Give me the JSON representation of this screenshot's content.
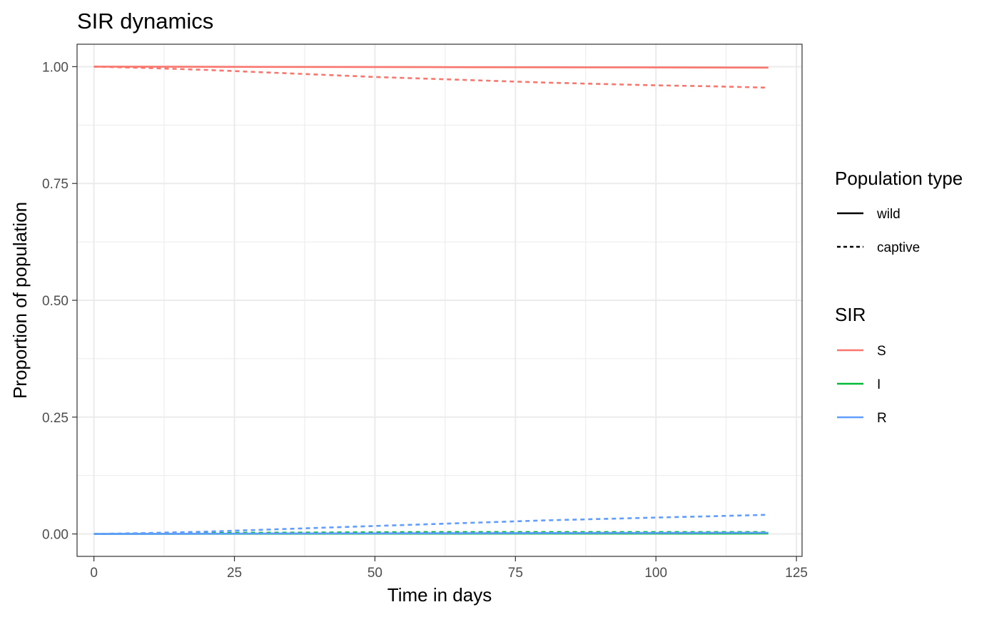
{
  "chart_data": {
    "type": "line",
    "title": "SIR dynamics",
    "xlabel": "Time in days",
    "ylabel": "Proportion of population",
    "xlim": [
      -3,
      126
    ],
    "ylim": [
      -0.048,
      1.048
    ],
    "x_ticks": [
      0,
      25,
      50,
      75,
      100,
      125
    ],
    "x_tick_labels": [
      "0",
      "25",
      "50",
      "75",
      "100",
      "125"
    ],
    "y_ticks": [
      0,
      0.25,
      0.5,
      0.75,
      1.0
    ],
    "y_tick_labels": [
      "0.00",
      "0.25",
      "0.50",
      "0.75",
      "1.00"
    ],
    "grid": true,
    "theme": "bw",
    "legend_position": "right",
    "colors": {
      "S": "#F8766D",
      "I": "#00BA38",
      "R": "#619CFF"
    },
    "legend_linetype": {
      "title": "Population type",
      "entries": [
        {
          "label": "wild",
          "linetype": "solid"
        },
        {
          "label": "captive",
          "linetype": "dashed"
        }
      ]
    },
    "legend_color": {
      "title": "SIR",
      "entries": [
        {
          "label": "S",
          "color": "#F8766D"
        },
        {
          "label": "I",
          "color": "#00BA38"
        },
        {
          "label": "R",
          "color": "#619CFF"
        }
      ]
    },
    "series": [
      {
        "name": "S",
        "population": "wild",
        "linetype": "solid",
        "color": "#F8766D",
        "x": [
          0,
          30,
          60,
          90,
          120
        ],
        "y": [
          1.0,
          0.9995,
          0.999,
          0.9985,
          0.998
        ]
      },
      {
        "name": "S",
        "population": "captive",
        "linetype": "dashed",
        "color": "#F8766D",
        "x": [
          0,
          10,
          20,
          30,
          40,
          50,
          60,
          70,
          80,
          90,
          100,
          110,
          120
        ],
        "y": [
          1.0,
          0.997,
          0.993,
          0.988,
          0.983,
          0.978,
          0.974,
          0.97,
          0.966,
          0.963,
          0.96,
          0.958,
          0.955
        ]
      },
      {
        "name": "I",
        "population": "wild",
        "linetype": "solid",
        "color": "#00BA38",
        "x": [
          0,
          30,
          60,
          90,
          120
        ],
        "y": [
          0.0,
          0.0004,
          0.0006,
          0.0007,
          0.0008
        ]
      },
      {
        "name": "I",
        "population": "captive",
        "linetype": "dashed",
        "color": "#00BA38",
        "x": [
          0,
          20,
          40,
          60,
          80,
          100,
          120
        ],
        "y": [
          0.0,
          0.002,
          0.003,
          0.004,
          0.004,
          0.004,
          0.004
        ]
      },
      {
        "name": "R",
        "population": "wild",
        "linetype": "solid",
        "color": "#619CFF",
        "x": [
          0,
          30,
          60,
          90,
          120
        ],
        "y": [
          0.0,
          0.0008,
          0.0015,
          0.002,
          0.0025
        ]
      },
      {
        "name": "R",
        "population": "captive",
        "linetype": "dashed",
        "color": "#619CFF",
        "x": [
          0,
          10,
          20,
          30,
          40,
          50,
          60,
          70,
          80,
          90,
          100,
          110,
          120
        ],
        "y": [
          0.0,
          0.002,
          0.005,
          0.009,
          0.013,
          0.017,
          0.021,
          0.025,
          0.029,
          0.032,
          0.035,
          0.038,
          0.041
        ]
      }
    ]
  }
}
